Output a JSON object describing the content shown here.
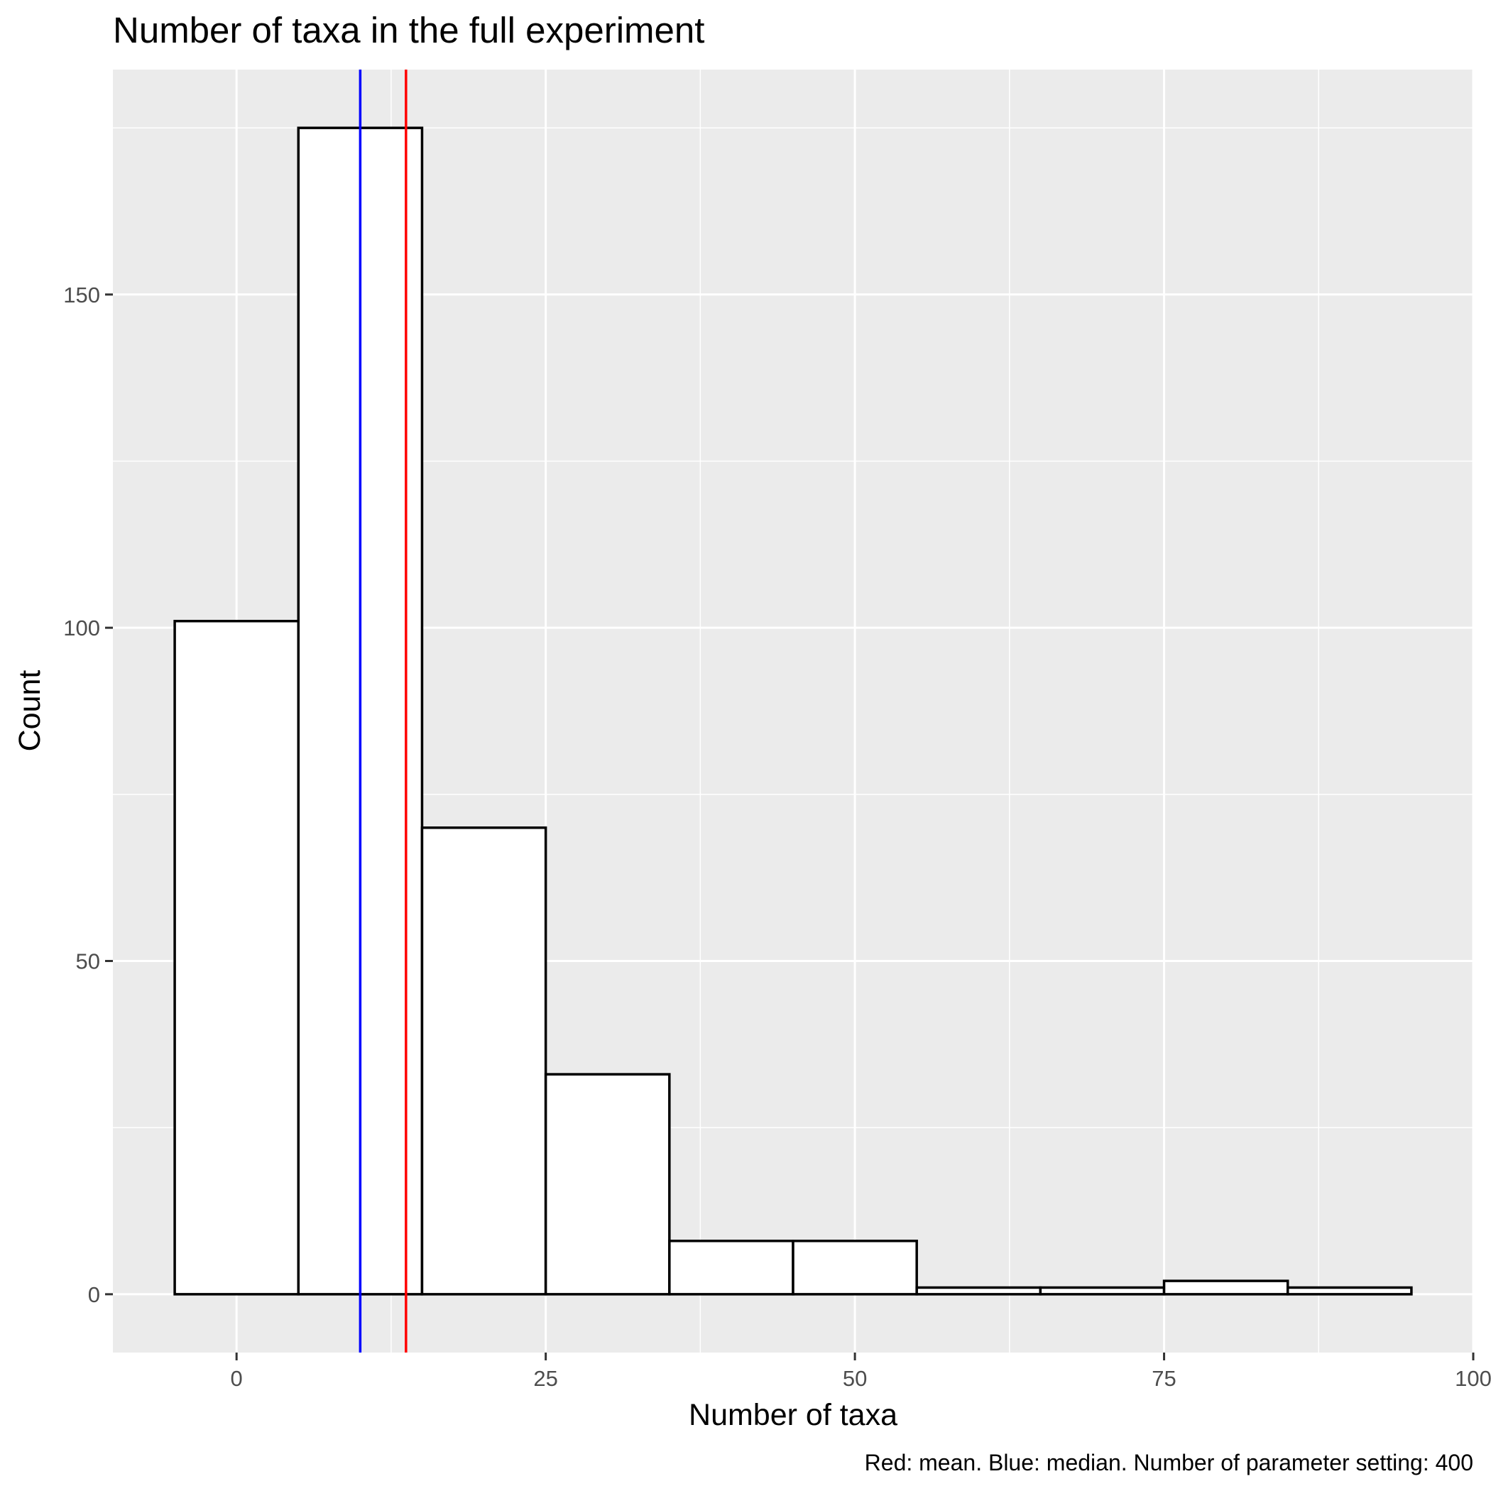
{
  "chart_data": {
    "type": "histogram",
    "title": "Number of taxa in the full experiment",
    "xlabel": "Number of taxa",
    "ylabel": "Count",
    "caption": "Red: mean. Blue: median. Number of parameter setting: 400",
    "bin_width": 10,
    "bins": [
      {
        "x_start": -5,
        "x_end": 5,
        "count": 101
      },
      {
        "x_start": 5,
        "x_end": 15,
        "count": 175
      },
      {
        "x_start": 15,
        "x_end": 25,
        "count": 70
      },
      {
        "x_start": 25,
        "x_end": 35,
        "count": 33
      },
      {
        "x_start": 35,
        "x_end": 45,
        "count": 8
      },
      {
        "x_start": 45,
        "x_end": 55,
        "count": 8
      },
      {
        "x_start": 55,
        "x_end": 65,
        "count": 1
      },
      {
        "x_start": 65,
        "x_end": 75,
        "count": 1
      },
      {
        "x_start": 75,
        "x_end": 85,
        "count": 2
      },
      {
        "x_start": 85,
        "x_end": 95,
        "count": 1
      }
    ],
    "reference_lines": [
      {
        "label": "median",
        "value": 10,
        "color": "#0000ff"
      },
      {
        "label": "mean",
        "value": 13.7,
        "color": "#ff0000"
      }
    ],
    "xlim": [
      -10,
      100
    ],
    "ylim": [
      -8.75,
      183.75
    ],
    "x_ticks": [
      0,
      25,
      50,
      75,
      100
    ],
    "x_tick_labels": [
      "0",
      "25",
      "50",
      "75",
      "100"
    ],
    "y_ticks": [
      0,
      50,
      100,
      150
    ],
    "y_tick_labels": [
      "0",
      "50",
      "100",
      "150"
    ],
    "grid": true,
    "colors": {
      "panel_background": "#ebebeb",
      "grid_line": "#ffffff",
      "bar_fill": "#ffffff",
      "bar_outline": "#000000"
    }
  }
}
